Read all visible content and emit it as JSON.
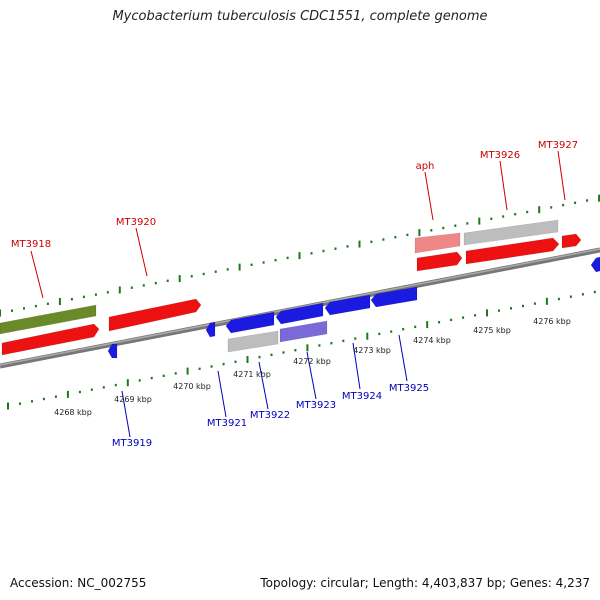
{
  "title": "Mycobacterium tuberculosis CDC1551, complete genome",
  "footer": {
    "accession": "Accession: NC_002755",
    "summary": "Topology: circular; Length: 4,403,837 bp; Genes: 4,237"
  },
  "colors": {
    "backbone": "#777777",
    "tick": "#1a7a1a",
    "forward_gene": "#ee1111",
    "forward_gene_light": "#ee8888",
    "reverse_gene": "#1a1ae0",
    "reverse_gene_light": "#7a6ad8",
    "pseudo_gray": "#bdbdbd",
    "olive": "#6a8a2a",
    "top_label": "#cc0000",
    "bottom_label": "#0000bb"
  },
  "ruler": {
    "labels": [
      "4268 kbp",
      "4269 kbp",
      "4270 kbp",
      "4271 kbp",
      "4272 kbp",
      "4273 kbp",
      "4274 kbp",
      "4275 kbp",
      "4276 kbp"
    ]
  },
  "top_gene_labels": [
    "MT3918",
    "MT3920",
    "aph",
    "MT3926",
    "MT3927"
  ],
  "bottom_gene_labels": [
    "MT3919",
    "MT3921",
    "MT3922",
    "MT3923",
    "MT3924",
    "MT3925"
  ]
}
